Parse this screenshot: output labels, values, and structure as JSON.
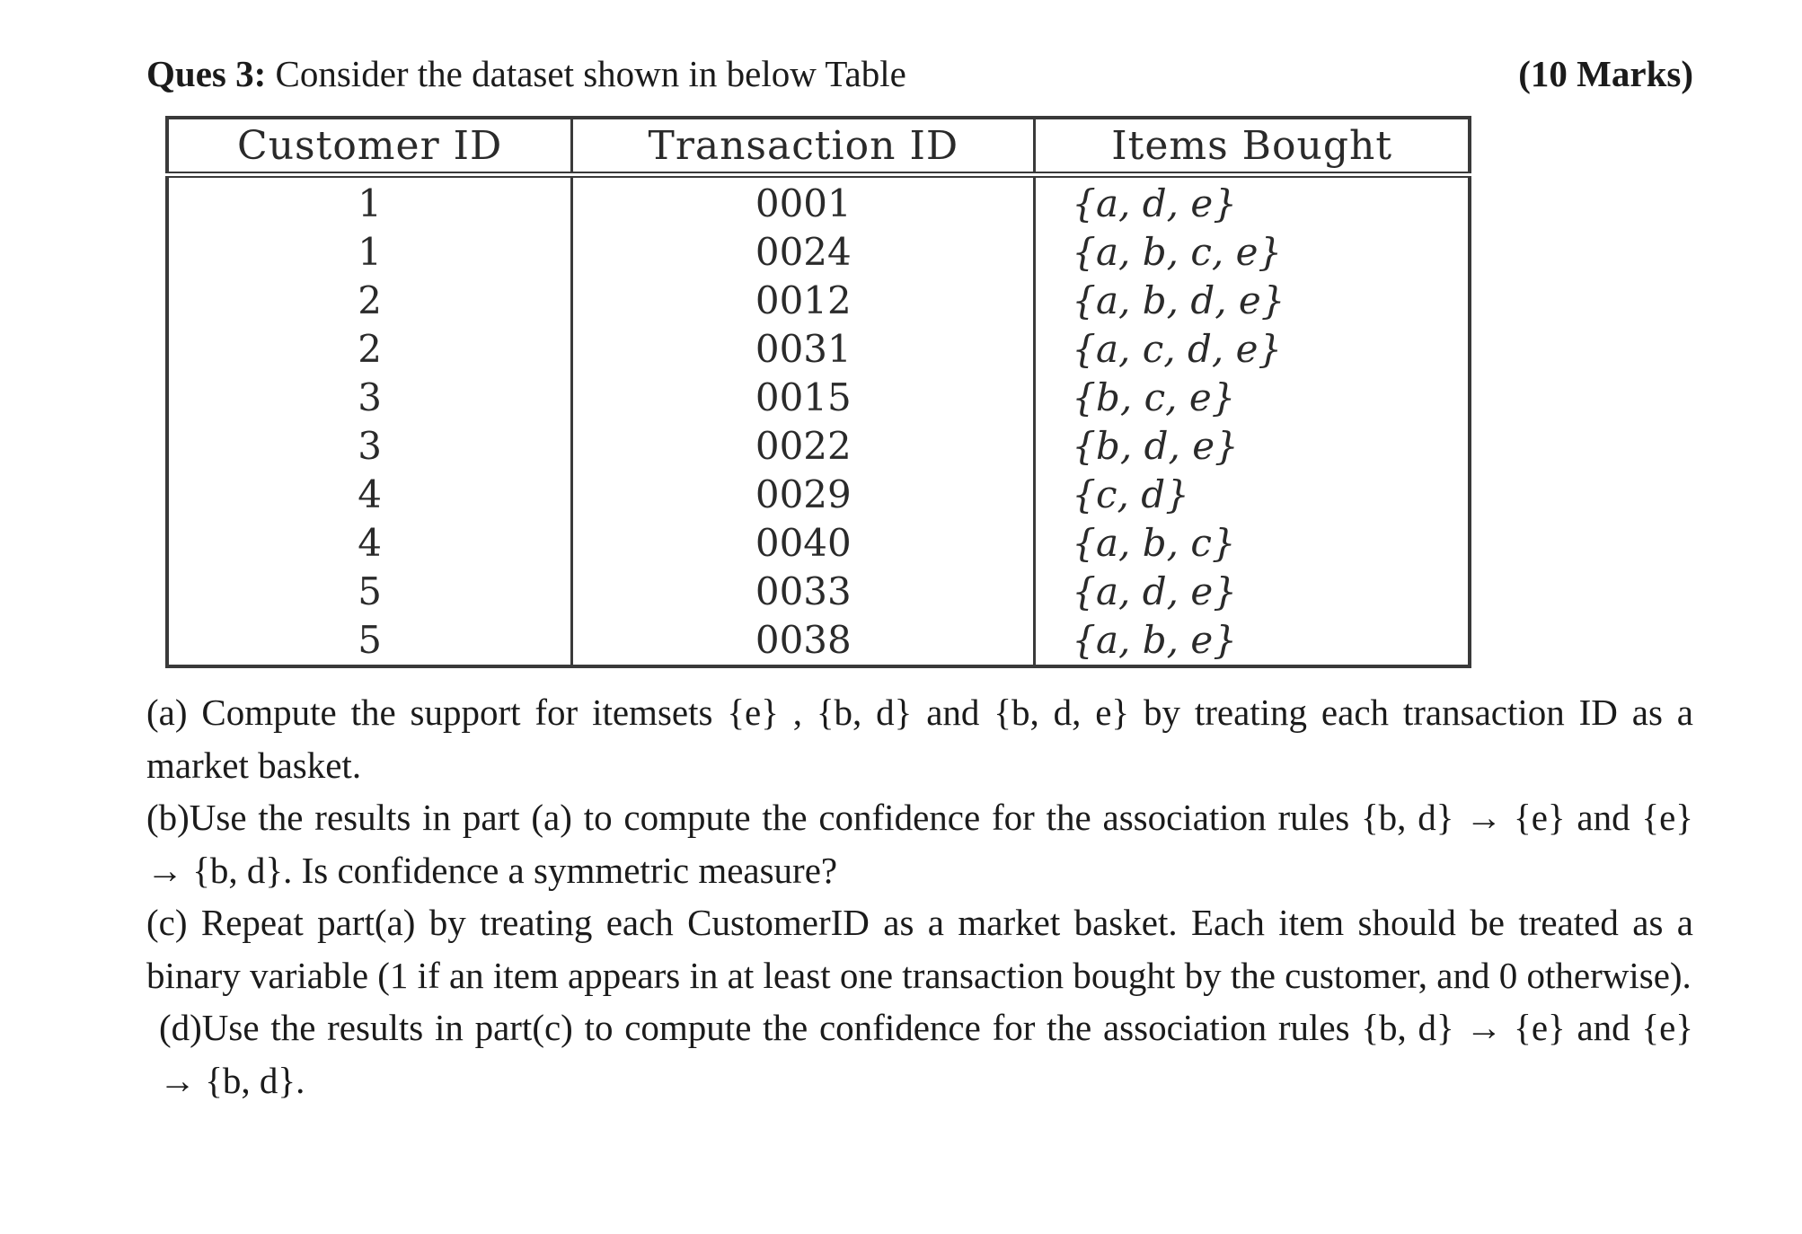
{
  "header": {
    "label": "Ques 3:",
    "text": " Consider the dataset shown in below Table",
    "marks": "(10 Marks)"
  },
  "table": {
    "columns": [
      "Customer ID",
      "Transaction ID",
      "Items Bought"
    ],
    "rows": [
      {
        "customer": "1",
        "transaction": "0001",
        "items": "{a, d, e}"
      },
      {
        "customer": "1",
        "transaction": "0024",
        "items": "{a, b, c, e}"
      },
      {
        "customer": "2",
        "transaction": "0012",
        "items": "{a, b, d, e}"
      },
      {
        "customer": "2",
        "transaction": "0031",
        "items": "{a, c, d, e}"
      },
      {
        "customer": "3",
        "transaction": "0015",
        "items": "{b, c, e}"
      },
      {
        "customer": "3",
        "transaction": "0022",
        "items": "{b, d, e}"
      },
      {
        "customer": "4",
        "transaction": "0029",
        "items": "{c, d}"
      },
      {
        "customer": "4",
        "transaction": "0040",
        "items": "{a, b, c}"
      },
      {
        "customer": "5",
        "transaction": "0033",
        "items": "{a, d, e}"
      },
      {
        "customer": "5",
        "transaction": "0038",
        "items": "{a, b, e}"
      }
    ]
  },
  "questions": {
    "a": "(a) Compute the support for itemsets {e} , {b, d} and {b, d, e} by treating each transaction ID as a market basket.",
    "b": "(b)Use the results in part (a) to compute the confidence for the association rules {b, d} → {e} and {e} → {b, d}. Is confidence a symmetric measure?",
    "c": "(c) Repeat part(a) by treating each CustomerID as a market basket. Each item should be treated as a binary variable (1 if an item appears in at least one transaction bought by the customer, and 0 otherwise).",
    "d": "(d)Use the results in part(c) to compute the confidence for the association rules {b, d} → {e} and {e} → {b, d}."
  }
}
